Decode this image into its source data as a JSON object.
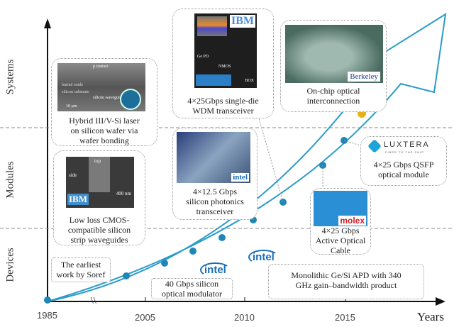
{
  "levels": {
    "systems": "Systems",
    "modules": "Modules",
    "devices": "Devices"
  },
  "axis": {
    "x_label": "Years",
    "ticks": [
      "1985",
      "2005",
      "2010",
      "2015"
    ],
    "break": "\\\\"
  },
  "milestones": {
    "hybrid": {
      "caption": [
        "Hybrid III/V-Si laser",
        "on silicon wafer via",
        "wafer bonding"
      ],
      "img_labels": [
        "p contact",
        "buried oxide",
        "silicon substrate",
        "silicon waveguide",
        "10 µm"
      ]
    },
    "ibm_wdm": {
      "caption": [
        "4×25Gbps single-die",
        "WDM transceiver"
      ],
      "logo": "IBM",
      "img_labels": [
        "Ge PD",
        "NMOS",
        "BOX"
      ]
    },
    "berkeley": {
      "caption": [
        "On-chip optical",
        "interconnection"
      ],
      "logo": "Berkeley"
    },
    "strip": {
      "caption": [
        "Low loss CMOS-",
        "compatible silicon",
        "strip waveguides"
      ],
      "logo": "IBM",
      "img_labels": [
        "top",
        "side",
        "400 nm"
      ]
    },
    "intel_125": {
      "caption": [
        "4×12.5 Gbps",
        "silicon photonics",
        "transceiver"
      ],
      "logo": "intel"
    },
    "luxtera": {
      "caption": [
        "4×25 Gbps QSFP",
        "optical module"
      ],
      "logo": "LUXTERA",
      "tagline": "FIBER TO THE CHIP"
    },
    "molex": {
      "caption": [
        "4×25 Gbps",
        "Active Optical",
        "Cable"
      ],
      "logo": "molex"
    },
    "soref": {
      "caption": [
        "The earliest",
        "work by Soref"
      ]
    },
    "modulator": {
      "caption": [
        "40 Gbps silicon",
        "optical modulator"
      ],
      "logo": "intel"
    },
    "apd": {
      "caption": [
        "Monolithic Ge/Si APD with 340",
        "GHz gain–bandwidth product"
      ],
      "logo": "intel"
    }
  },
  "colors": {
    "curve": "#2a9bc9",
    "dot": "#1f86b8",
    "gold": "#e8b11a"
  }
}
